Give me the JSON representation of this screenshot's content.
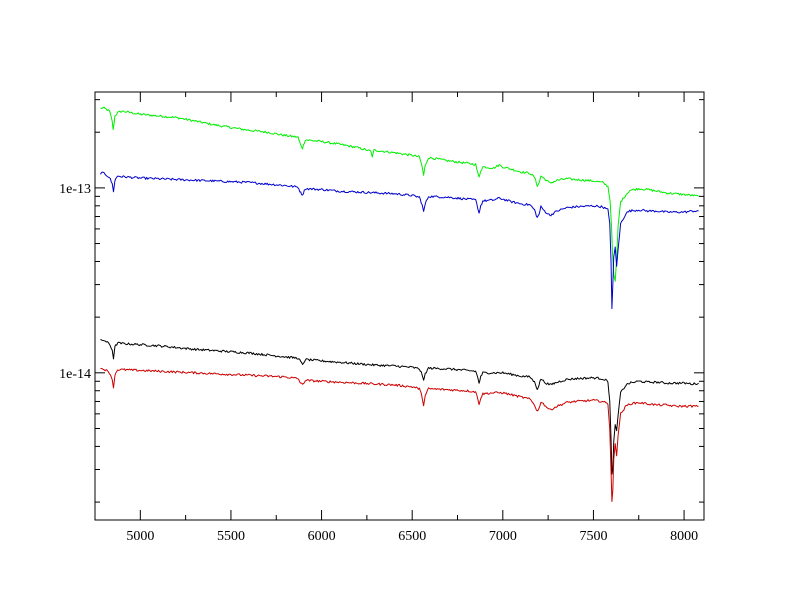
{
  "chart_data": {
    "type": "line",
    "title": "",
    "xlabel": "",
    "ylabel": "",
    "x_scale": "linear",
    "y_scale": "log",
    "xlim": [
      4750,
      8110
    ],
    "ylim": [
      1.6e-15,
      3.3e-13
    ],
    "x_ticks": [
      5000,
      5500,
      6000,
      6500,
      7000,
      7500,
      8000
    ],
    "x_tick_labels": [
      "5000",
      "5500",
      "6000",
      "6500",
      "7000",
      "7500",
      "8000"
    ],
    "y_ticks": [
      1e-14,
      1e-13
    ],
    "y_tick_labels": [
      "1e-14",
      "1e-13"
    ],
    "grid": false,
    "legend": "none",
    "series": [
      {
        "color": "#00ee00",
        "x": [
          4780,
          4800,
          4830,
          4845,
          4850,
          4860,
          4875,
          4900,
          5000,
          5100,
          5200,
          5300,
          5400,
          5500,
          5600,
          5700,
          5800,
          5870,
          5885,
          5895,
          5910,
          6000,
          6100,
          6200,
          6270,
          6280,
          6290,
          6400,
          6500,
          6540,
          6555,
          6563,
          6572,
          6590,
          6700,
          6800,
          6850,
          6862,
          6869,
          6878,
          6890,
          6950,
          6980,
          7000,
          7050,
          7100,
          7150,
          7175,
          7190,
          7200,
          7210,
          7230,
          7260,
          7300,
          7350,
          7400,
          7500,
          7550,
          7580,
          7592,
          7600,
          7605,
          7612,
          7620,
          7628,
          7636,
          7650,
          7680,
          7700,
          7750,
          7800,
          7850,
          7900,
          7950,
          8000,
          8050,
          8080
        ],
        "y": [
          2.7e-13,
          2.7e-13,
          2.6e-13,
          2.3e-13,
          2.05e-13,
          2.45e-13,
          2.55e-13,
          2.6e-13,
          2.5e-13,
          2.45e-13,
          2.4e-13,
          2.3e-13,
          2.2e-13,
          2.12e-13,
          2.05e-13,
          2e-13,
          1.92e-13,
          1.88e-13,
          1.7e-13,
          1.64e-13,
          1.82e-13,
          1.78e-13,
          1.72e-13,
          1.65e-13,
          1.58e-13,
          1.48e-13,
          1.6e-13,
          1.55e-13,
          1.5e-13,
          1.47e-13,
          1.3e-13,
          1.17e-13,
          1.32e-13,
          1.46e-13,
          1.4e-13,
          1.36e-13,
          1.34e-13,
          1.2e-13,
          1.14e-13,
          1.24e-13,
          1.3e-13,
          1.28e-13,
          1.33e-13,
          1.3e-13,
          1.26e-13,
          1.22e-13,
          1.2e-13,
          1.14e-13,
          1.03e-13,
          1.06e-13,
          1.16e-13,
          1.12e-13,
          1.06e-13,
          1.1e-13,
          1.12e-13,
          1.11e-13,
          1.09e-13,
          1.07e-13,
          1.02e-13,
          8.5e-14,
          6.2e-14,
          4.4e-14,
          3.4e-14,
          3.1e-14,
          4.1e-14,
          6.2e-14,
          8.4e-14,
          9.2e-14,
          9.7e-14,
          9.9e-14,
          9.8e-14,
          9.6e-14,
          9.4e-14,
          9.3e-14,
          9.2e-14,
          9.1e-14,
          9e-14
        ]
      },
      {
        "color": "#0000cc",
        "x": [
          4780,
          4800,
          4830,
          4845,
          4852,
          4860,
          4875,
          4900,
          5000,
          5100,
          5200,
          5300,
          5400,
          5500,
          5600,
          5700,
          5800,
          5870,
          5885,
          5895,
          5910,
          6000,
          6100,
          6200,
          6300,
          6400,
          6500,
          6540,
          6555,
          6563,
          6572,
          6590,
          6700,
          6800,
          6850,
          6862,
          6869,
          6878,
          6890,
          6950,
          6980,
          7000,
          7050,
          7100,
          7150,
          7175,
          7190,
          7200,
          7210,
          7230,
          7260,
          7300,
          7350,
          7400,
          7500,
          7550,
          7580,
          7590,
          7597,
          7602,
          7607,
          7612,
          7620,
          7628,
          7636,
          7650,
          7680,
          7700,
          7750,
          7800,
          7850,
          7900,
          7950,
          8000,
          8050,
          8080
        ],
        "y": [
          1.2e-13,
          1.2e-13,
          1.14e-13,
          1.05e-13,
          9.6e-14,
          1.1e-13,
          1.16e-13,
          1.15e-13,
          1.13e-13,
          1.12e-13,
          1.11e-13,
          1.1e-13,
          1.09e-13,
          1.08e-13,
          1.07e-13,
          1.05e-13,
          1.03e-13,
          1.01e-13,
          9.4e-14,
          9.2e-14,
          9.9e-14,
          9.8e-14,
          9.6e-14,
          9.5e-14,
          9.4e-14,
          9.3e-14,
          9.1e-14,
          8.9e-14,
          8.1e-14,
          7.4e-14,
          8.2e-14,
          9e-14,
          8.9e-14,
          8.7e-14,
          8.6e-14,
          7.8e-14,
          7.3e-14,
          8e-14,
          8.5e-14,
          8.6e-14,
          8.8e-14,
          8.7e-14,
          8.4e-14,
          8.2e-14,
          8.1e-14,
          7.6e-14,
          6.9e-14,
          7.2e-14,
          7.9e-14,
          7.5e-14,
          7.1e-14,
          7.5e-14,
          7.8e-14,
          7.9e-14,
          8e-14,
          7.9e-14,
          7.6e-14,
          6.5e-14,
          4e-14,
          2.2e-14,
          3e-14,
          4.2e-14,
          4.8e-14,
          3.8e-14,
          4.6e-14,
          6.4e-14,
          7.3e-14,
          7.5e-14,
          7.6e-14,
          7.5e-14,
          7.5e-14,
          7.4e-14,
          7.4e-14,
          7.4e-14,
          7.5e-14,
          7.5e-14
        ]
      },
      {
        "color": "#000000",
        "x": [
          4780,
          4800,
          4830,
          4845,
          4852,
          4860,
          4875,
          4900,
          5000,
          5100,
          5200,
          5300,
          5400,
          5500,
          5600,
          5700,
          5800,
          5870,
          5885,
          5895,
          5910,
          6000,
          6100,
          6200,
          6300,
          6400,
          6500,
          6540,
          6555,
          6563,
          6572,
          6590,
          6700,
          6800,
          6850,
          6862,
          6869,
          6878,
          6890,
          6950,
          7000,
          7050,
          7100,
          7150,
          7175,
          7190,
          7200,
          7210,
          7230,
          7260,
          7300,
          7350,
          7400,
          7500,
          7550,
          7580,
          7590,
          7597,
          7602,
          7607,
          7612,
          7620,
          7628,
          7636,
          7650,
          7680,
          7700,
          7750,
          7800,
          7850,
          7900,
          7950,
          8000,
          8050,
          8080
        ],
        "y": [
          1.5e-14,
          1.5e-14,
          1.43e-14,
          1.33e-14,
          1.2e-14,
          1.38e-14,
          1.45e-14,
          1.44e-14,
          1.42e-14,
          1.4e-14,
          1.37e-14,
          1.34e-14,
          1.32e-14,
          1.3e-14,
          1.28e-14,
          1.25e-14,
          1.22e-14,
          1.2e-14,
          1.15e-14,
          1.1e-14,
          1.18e-14,
          1.16e-14,
          1.14e-14,
          1.12e-14,
          1.1e-14,
          1.09e-14,
          1.07e-14,
          1.05e-14,
          9.8e-15,
          9e-15,
          9.9e-15,
          1.06e-14,
          1.05e-14,
          1.03e-14,
          1.02e-14,
          9.4e-15,
          8.8e-15,
          9.5e-15,
          1e-14,
          1e-14,
          1e-14,
          9.8e-15,
          9.6e-15,
          9.5e-15,
          8.9e-15,
          8.2e-15,
          8.6e-15,
          9.3e-15,
          8.9e-15,
          8.6e-15,
          8.9e-15,
          9.2e-15,
          9.3e-15,
          9.4e-15,
          9.3e-15,
          9e-15,
          7e-15,
          4.4e-15,
          2.8e-15,
          3e-15,
          4.3e-15,
          5.2e-15,
          4.8e-15,
          5.9e-15,
          7.8e-15,
          8.6e-15,
          8.8e-15,
          9e-15,
          8.9e-15,
          8.9e-15,
          8.8e-15,
          8.8e-15,
          8.8e-15,
          8.7e-15,
          8.8e-15
        ]
      },
      {
        "color": "#cc0000",
        "x": [
          4780,
          4800,
          4830,
          4845,
          4852,
          4860,
          4875,
          4900,
          5000,
          5100,
          5200,
          5300,
          5400,
          5500,
          5600,
          5700,
          5800,
          5870,
          5885,
          5895,
          5910,
          6000,
          6100,
          6200,
          6300,
          6400,
          6500,
          6540,
          6555,
          6563,
          6572,
          6590,
          6700,
          6800,
          6850,
          6862,
          6869,
          6878,
          6890,
          6950,
          7000,
          7050,
          7100,
          7150,
          7175,
          7190,
          7200,
          7210,
          7230,
          7260,
          7300,
          7350,
          7400,
          7500,
          7550,
          7580,
          7590,
          7597,
          7602,
          7607,
          7612,
          7620,
          7628,
          7636,
          7650,
          7680,
          7700,
          7750,
          7800,
          7850,
          7900,
          7950,
          8000,
          8050,
          8080
        ],
        "y": [
          1.05e-14,
          1.05e-14,
          1e-14,
          9.3e-15,
          8.2e-15,
          9.8e-15,
          1.04e-14,
          1.04e-14,
          1.03e-14,
          1.02e-14,
          1.01e-14,
          1e-14,
          9.9e-15,
          9.8e-15,
          9.7e-15,
          9.6e-15,
          9.5e-15,
          9.3e-15,
          8.8e-15,
          8.6e-15,
          9.1e-15,
          9e-15,
          8.9e-15,
          8.8e-15,
          8.7e-15,
          8.6e-15,
          8.4e-15,
          8.2e-15,
          7.4e-15,
          6.7e-15,
          7.5e-15,
          8.2e-15,
          8.1e-15,
          8e-15,
          7.9e-15,
          7.2e-15,
          6.8e-15,
          7.3e-15,
          7.7e-15,
          7.8e-15,
          7.8e-15,
          7.6e-15,
          7.4e-15,
          7.2e-15,
          6.7e-15,
          6.2e-15,
          6.4e-15,
          7e-15,
          6.7e-15,
          6.3e-15,
          6.6e-15,
          6.9e-15,
          7e-15,
          7.1e-15,
          7e-15,
          6.8e-15,
          5e-15,
          3e-15,
          2e-15,
          2.3e-15,
          3.4e-15,
          4.2e-15,
          3.6e-15,
          4.6e-15,
          6e-15,
          6.6e-15,
          6.8e-15,
          6.9e-15,
          6.8e-15,
          6.7e-15,
          6.7e-15,
          6.6e-15,
          6.6e-15,
          6.6e-15,
          6.6e-15
        ]
      }
    ]
  }
}
